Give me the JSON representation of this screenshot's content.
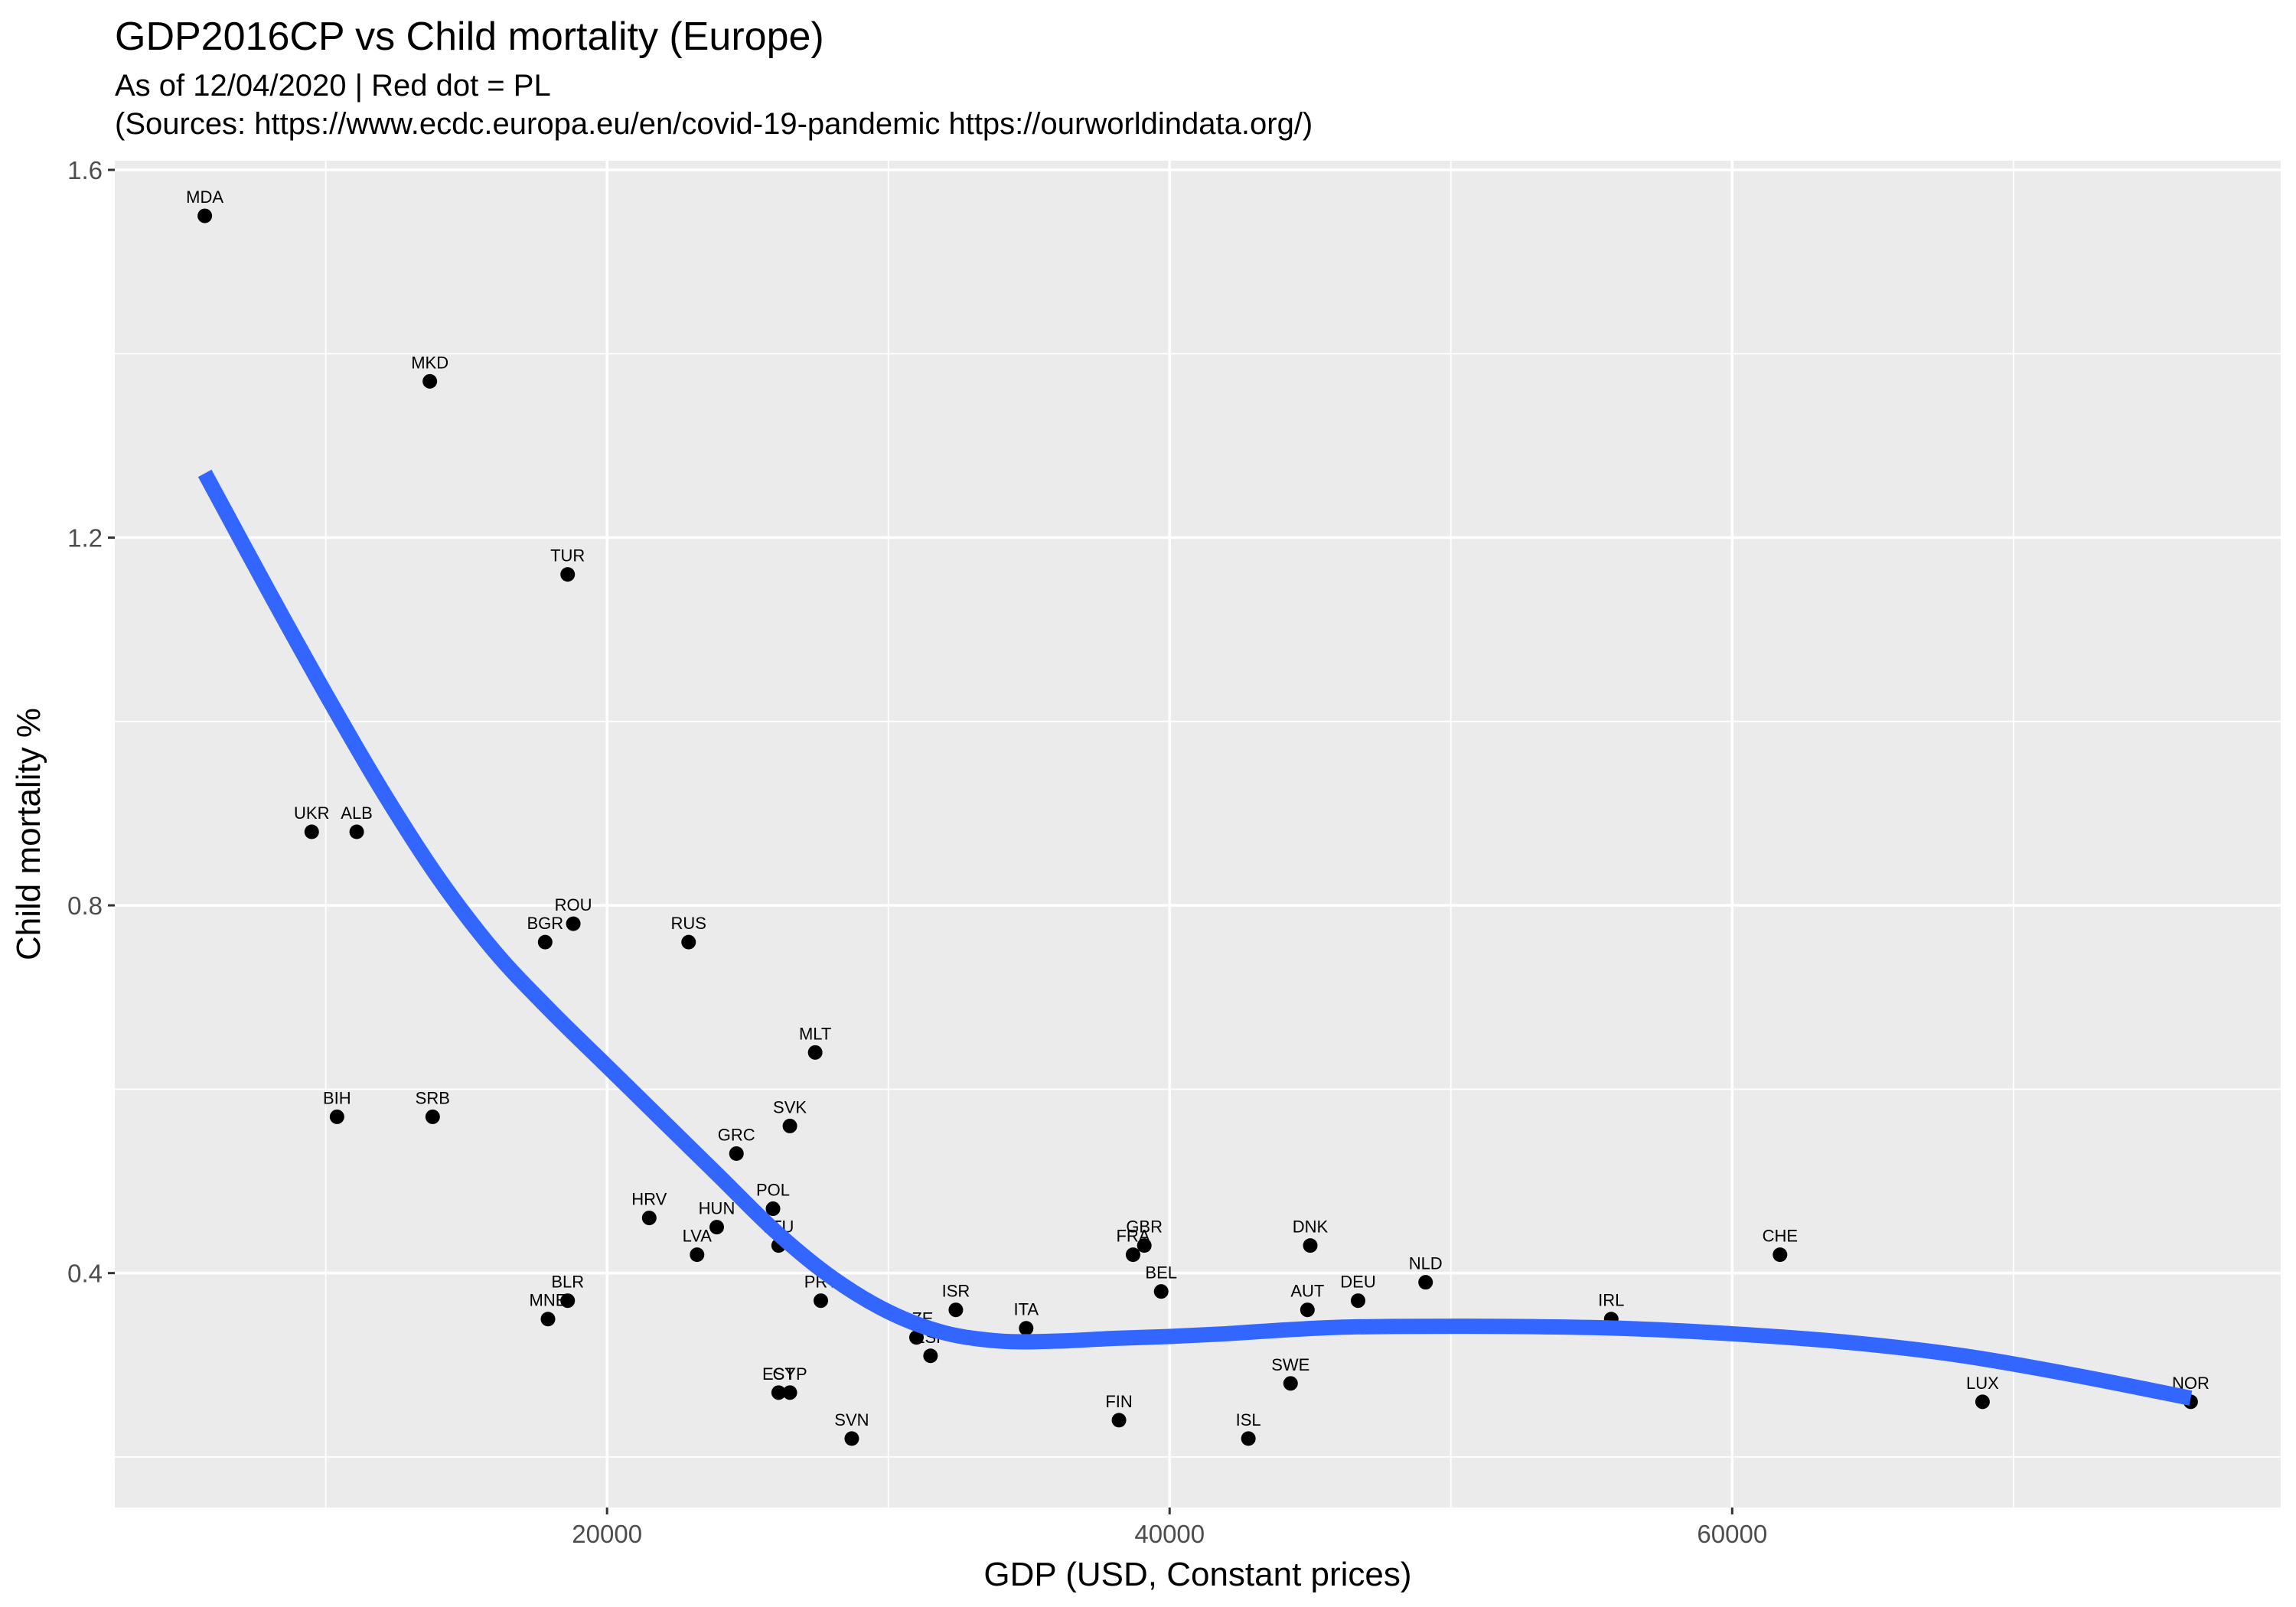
{
  "chart_data": {
    "type": "scatter",
    "title": "GDP2016CP vs Child mortality (Europe)",
    "subtitle_lines": [
      "As of 12/04/2020 | Red dot = PL",
      "(Sources: https://www.ecdc.europa.eu/en/covid-19-pandemic https://ourworldindata.org/)"
    ],
    "xlabel": "GDP (USD, Constant prices)",
    "ylabel": "Child mortality %",
    "xlim": [
      2500,
      79500
    ],
    "ylim": [
      0.145,
      1.61
    ],
    "x_ticks": [
      20000,
      40000,
      60000
    ],
    "x_tick_labels": [
      "20000",
      "40000",
      "60000"
    ],
    "y_ticks": [
      0.4,
      0.8,
      1.2,
      1.6
    ],
    "y_tick_labels": [
      "0.4",
      "0.8",
      "1.2",
      "1.6"
    ],
    "grid": true,
    "panel_background": "#ebebeb",
    "grid_color": "#ffffff",
    "point_color": "#000000",
    "smooth_color": "#3366ff",
    "points": [
      {
        "label": "MDA",
        "x": 5700,
        "y": 1.55
      },
      {
        "label": "MKD",
        "x": 13700,
        "y": 1.37
      },
      {
        "label": "TUR",
        "x": 18600,
        "y": 1.16
      },
      {
        "label": "UKR",
        "x": 9500,
        "y": 0.88
      },
      {
        "label": "ALB",
        "x": 11100,
        "y": 0.88
      },
      {
        "label": "ROU",
        "x": 18800,
        "y": 0.78
      },
      {
        "label": "BGR",
        "x": 17800,
        "y": 0.76
      },
      {
        "label": "RUS",
        "x": 22900,
        "y": 0.76
      },
      {
        "label": "MLT",
        "x": 27400,
        "y": 0.64
      },
      {
        "label": "BIH",
        "x": 10400,
        "y": 0.57
      },
      {
        "label": "SRB",
        "x": 13800,
        "y": 0.57
      },
      {
        "label": "SVK",
        "x": 26500,
        "y": 0.56
      },
      {
        "label": "GRC",
        "x": 24600,
        "y": 0.53
      },
      {
        "label": "POL",
        "x": 25900,
        "y": 0.47
      },
      {
        "label": "HRV",
        "x": 21500,
        "y": 0.46
      },
      {
        "label": "HUN",
        "x": 23900,
        "y": 0.45
      },
      {
        "label": "LTU",
        "x": 26100,
        "y": 0.43
      },
      {
        "label": "LVA",
        "x": 23200,
        "y": 0.42
      },
      {
        "label": "BLR",
        "x": 18600,
        "y": 0.37
      },
      {
        "label": "MNE",
        "x": 17900,
        "y": 0.35
      },
      {
        "label": "PRT",
        "x": 27600,
        "y": 0.37
      },
      {
        "label": "CZE",
        "x": 31000,
        "y": 0.33
      },
      {
        "label": "ESP",
        "x": 31500,
        "y": 0.31
      },
      {
        "label": "ISR",
        "x": 32400,
        "y": 0.36
      },
      {
        "label": "ITA",
        "x": 34900,
        "y": 0.34
      },
      {
        "label": "EST",
        "x": 26100,
        "y": 0.27
      },
      {
        "label": "CYP",
        "x": 26500,
        "y": 0.27
      },
      {
        "label": "SVN",
        "x": 28700,
        "y": 0.22
      },
      {
        "label": "FRA",
        "x": 38700,
        "y": 0.42
      },
      {
        "label": "GBR",
        "x": 39100,
        "y": 0.43
      },
      {
        "label": "BEL",
        "x": 39700,
        "y": 0.38
      },
      {
        "label": "FIN",
        "x": 38200,
        "y": 0.24
      },
      {
        "label": "DNK",
        "x": 45000,
        "y": 0.43
      },
      {
        "label": "AUT",
        "x": 44900,
        "y": 0.36
      },
      {
        "label": "DEU",
        "x": 46700,
        "y": 0.37
      },
      {
        "label": "NLD",
        "x": 49100,
        "y": 0.39
      },
      {
        "label": "SWE",
        "x": 44300,
        "y": 0.28
      },
      {
        "label": "ISL",
        "x": 42800,
        "y": 0.22
      },
      {
        "label": "IRL",
        "x": 55700,
        "y": 0.35
      },
      {
        "label": "CHE",
        "x": 61700,
        "y": 0.42
      },
      {
        "label": "LUX",
        "x": 68900,
        "y": 0.26
      },
      {
        "label": "NOR",
        "x": 76300,
        "y": 0.26
      }
    ],
    "smooth_curve": [
      {
        "x": 5700,
        "y": 1.27
      },
      {
        "x": 8000,
        "y": 1.14
      },
      {
        "x": 10000,
        "y": 1.03
      },
      {
        "x": 12000,
        "y": 0.925
      },
      {
        "x": 14000,
        "y": 0.83
      },
      {
        "x": 16000,
        "y": 0.75
      },
      {
        "x": 18000,
        "y": 0.685
      },
      {
        "x": 20000,
        "y": 0.625
      },
      {
        "x": 22000,
        "y": 0.565
      },
      {
        "x": 24000,
        "y": 0.505
      },
      {
        "x": 26000,
        "y": 0.445
      },
      {
        "x": 28000,
        "y": 0.395
      },
      {
        "x": 30000,
        "y": 0.358
      },
      {
        "x": 32000,
        "y": 0.335
      },
      {
        "x": 34000,
        "y": 0.326
      },
      {
        "x": 36000,
        "y": 0.326
      },
      {
        "x": 38000,
        "y": 0.329
      },
      {
        "x": 40000,
        "y": 0.331
      },
      {
        "x": 42000,
        "y": 0.334
      },
      {
        "x": 44000,
        "y": 0.338
      },
      {
        "x": 46000,
        "y": 0.341
      },
      {
        "x": 48000,
        "y": 0.342
      },
      {
        "x": 52000,
        "y": 0.342
      },
      {
        "x": 56000,
        "y": 0.34
      },
      {
        "x": 60000,
        "y": 0.334
      },
      {
        "x": 64000,
        "y": 0.325
      },
      {
        "x": 68000,
        "y": 0.311
      },
      {
        "x": 72000,
        "y": 0.29
      },
      {
        "x": 76300,
        "y": 0.264
      }
    ]
  }
}
